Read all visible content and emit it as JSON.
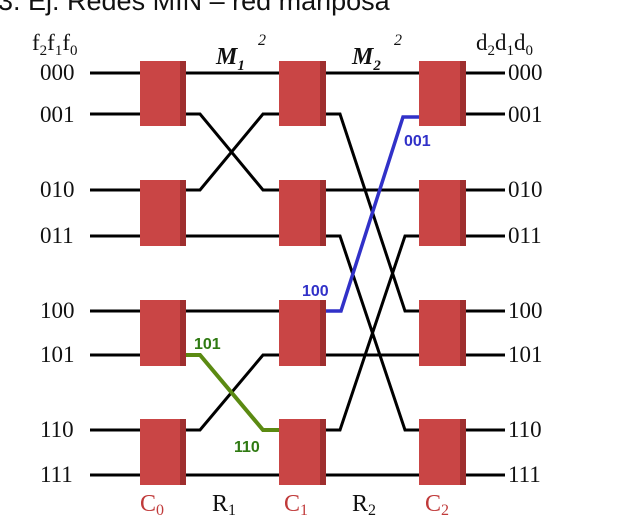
{
  "header": {
    "title": "3. Ej. Redes MIN – red mariposa"
  },
  "columns": {
    "input_header": {
      "main": "f",
      "subs": [
        "2",
        "1",
        "0"
      ]
    },
    "output_header": {
      "main": "d",
      "subs": [
        "2",
        "1",
        "0"
      ]
    }
  },
  "rows": [
    "000",
    "001",
    "010",
    "011",
    "100",
    "101",
    "110",
    "111"
  ],
  "stages": [
    {
      "letter": "C",
      "index": "0"
    },
    {
      "letter": "C",
      "index": "1"
    },
    {
      "letter": "C",
      "index": "2"
    }
  ],
  "ranks": [
    {
      "letter": "R",
      "index": "1"
    },
    {
      "letter": "R",
      "index": "2"
    }
  ],
  "matrices": [
    {
      "letter": "M",
      "index": "1",
      "power": "2"
    },
    {
      "letter": "M",
      "index": "2",
      "power": "2"
    }
  ],
  "paths": {
    "blue": {
      "from_label": "100",
      "to_label": "001",
      "color": "#3131c8"
    },
    "green": {
      "from_label": "101",
      "to_label": "110",
      "color": "#5b8a12"
    }
  },
  "colors": {
    "switch": "#c94545",
    "switch_shade": "#9f2f2f",
    "stage_label": "#c03a3a"
  }
}
